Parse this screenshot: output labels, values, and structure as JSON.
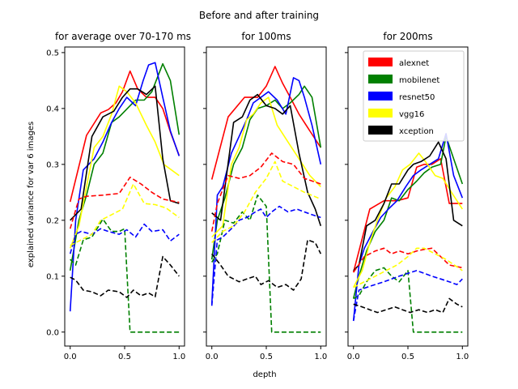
{
  "figure": {
    "suptitle": "Before and after training",
    "ylabel": "explained variance for var 6 images",
    "xlabel": "depth"
  },
  "colors": {
    "alexnet": "#ff0000",
    "mobilenet": "#008000",
    "resnet50": "#0000ff",
    "vgg16": "#ffff00",
    "xception": "#000000"
  },
  "legend": [
    "alexnet",
    "mobilenet",
    "resnet50",
    "vgg16",
    "xception"
  ],
  "chart_data": [
    {
      "type": "line",
      "title": "for average over 70-170 ms",
      "xlim": [
        -0.05,
        1.05
      ],
      "ylim": [
        -0.025,
        0.51
      ],
      "xticks": [
        "0.0",
        "0.5",
        "1.0"
      ],
      "yticks": [
        "0.0",
        "0.1",
        "0.2",
        "0.3",
        "0.4",
        "0.5"
      ],
      "series": [
        {
          "name": "alexnet",
          "style": "solid",
          "x": [
            0,
            0.15,
            0.28,
            0.35,
            0.42,
            0.48,
            0.55,
            0.62,
            0.7,
            0.78,
            0.85,
            0.92,
            1.0
          ],
          "y": [
            0.233,
            0.352,
            0.392,
            0.398,
            0.41,
            0.43,
            0.467,
            0.435,
            0.42,
            0.42,
            0.4,
            0.358,
            0.316
          ]
        },
        {
          "name": "mobilenet",
          "style": "solid",
          "x": [
            0,
            0.08,
            0.15,
            0.22,
            0.3,
            0.38,
            0.45,
            0.5,
            0.6,
            0.68,
            0.75,
            0.85,
            0.92,
            1.0
          ],
          "y": [
            0.11,
            0.2,
            0.245,
            0.3,
            0.32,
            0.375,
            0.385,
            0.395,
            0.415,
            0.415,
            0.43,
            0.48,
            0.45,
            0.353
          ]
        },
        {
          "name": "resnet50",
          "style": "solid",
          "x": [
            0,
            0.05,
            0.12,
            0.22,
            0.3,
            0.38,
            0.45,
            0.52,
            0.6,
            0.67,
            0.72,
            0.78,
            0.85,
            0.92,
            1.0
          ],
          "y": [
            0.037,
            0.2,
            0.29,
            0.31,
            0.34,
            0.375,
            0.4,
            0.42,
            0.405,
            0.45,
            0.478,
            0.482,
            0.42,
            0.36,
            0.315
          ]
        },
        {
          "name": "vgg16",
          "style": "solid",
          "x": [
            0,
            0.08,
            0.15,
            0.22,
            0.3,
            0.38,
            0.45,
            0.52,
            0.6,
            0.7,
            0.78,
            0.86,
            1.0
          ],
          "y": [
            0.15,
            0.19,
            0.26,
            0.33,
            0.35,
            0.39,
            0.44,
            0.43,
            0.41,
            0.37,
            0.34,
            0.3,
            0.28
          ]
        },
        {
          "name": "xception",
          "style": "solid",
          "x": [
            0,
            0.1,
            0.2,
            0.3,
            0.4,
            0.48,
            0.55,
            0.62,
            0.7,
            0.78,
            0.85,
            0.92,
            1.0
          ],
          "y": [
            0.2,
            0.22,
            0.35,
            0.385,
            0.395,
            0.42,
            0.435,
            0.435,
            0.425,
            0.44,
            0.31,
            0.235,
            0.23
          ]
        },
        {
          "name": "alexnet",
          "style": "dashed",
          "x": [
            0,
            0.08,
            0.15,
            0.3,
            0.45,
            0.55,
            0.65,
            0.75,
            0.85,
            1.0
          ],
          "y": [
            0.185,
            0.238,
            0.243,
            0.245,
            0.248,
            0.277,
            0.265,
            0.25,
            0.238,
            0.232
          ]
        },
        {
          "name": "mobilenet",
          "style": "dashed",
          "x": [
            0,
            0.05,
            0.12,
            0.2,
            0.3,
            0.38,
            0.45,
            0.5,
            0.55,
            0.65,
            0.8,
            1.0
          ],
          "y": [
            0.13,
            0.12,
            0.165,
            0.17,
            0.202,
            0.18,
            0.18,
            0.185,
            0.0,
            0.0,
            0.0,
            0.0
          ]
        },
        {
          "name": "resnet50",
          "style": "dashed",
          "x": [
            0,
            0.05,
            0.1,
            0.2,
            0.28,
            0.35,
            0.45,
            0.52,
            0.6,
            0.68,
            0.75,
            0.85,
            0.92,
            1.0
          ],
          "y": [
            0.14,
            0.175,
            0.18,
            0.175,
            0.185,
            0.18,
            0.175,
            0.183,
            0.17,
            0.193,
            0.18,
            0.183,
            0.163,
            0.175
          ]
        },
        {
          "name": "vgg16",
          "style": "dashed",
          "x": [
            0,
            0.1,
            0.2,
            0.28,
            0.38,
            0.48,
            0.58,
            0.68,
            0.78,
            0.88,
            1.0
          ],
          "y": [
            0.155,
            0.165,
            0.175,
            0.2,
            0.21,
            0.22,
            0.265,
            0.23,
            0.228,
            0.222,
            0.205
          ]
        },
        {
          "name": "xception",
          "style": "dashed",
          "x": [
            0,
            0.05,
            0.12,
            0.2,
            0.28,
            0.35,
            0.45,
            0.52,
            0.58,
            0.65,
            0.72,
            0.78,
            0.85,
            0.92,
            1.0
          ],
          "y": [
            0.098,
            0.093,
            0.075,
            0.072,
            0.065,
            0.075,
            0.072,
            0.062,
            0.075,
            0.065,
            0.07,
            0.063,
            0.135,
            0.12,
            0.1
          ]
        }
      ]
    },
    {
      "type": "line",
      "title": "for 100ms",
      "xlim": [
        -0.05,
        1.05
      ],
      "ylim": [
        -0.025,
        0.51
      ],
      "xticks": [
        "0.0",
        "0.5",
        "1.0"
      ],
      "xlabel": "depth",
      "series": [
        {
          "name": "alexnet",
          "style": "solid",
          "x": [
            0,
            0.15,
            0.3,
            0.42,
            0.5,
            0.58,
            0.65,
            0.72,
            0.8,
            0.9,
            1.0
          ],
          "y": [
            0.273,
            0.385,
            0.42,
            0.42,
            0.44,
            0.475,
            0.445,
            0.42,
            0.39,
            0.36,
            0.33
          ]
        },
        {
          "name": "mobilenet",
          "style": "solid",
          "x": [
            0,
            0.05,
            0.12,
            0.2,
            0.28,
            0.35,
            0.42,
            0.5,
            0.58,
            0.65,
            0.72,
            0.8,
            0.85,
            0.92,
            1.0
          ],
          "y": [
            0.13,
            0.2,
            0.24,
            0.3,
            0.33,
            0.38,
            0.4,
            0.405,
            0.415,
            0.4,
            0.41,
            0.425,
            0.44,
            0.42,
            0.33
          ]
        },
        {
          "name": "resnet50",
          "style": "solid",
          "x": [
            0,
            0.05,
            0.1,
            0.18,
            0.25,
            0.32,
            0.38,
            0.45,
            0.52,
            0.6,
            0.68,
            0.75,
            0.8,
            0.85,
            0.92,
            1.0
          ],
          "y": [
            0.05,
            0.245,
            0.26,
            0.32,
            0.35,
            0.38,
            0.41,
            0.42,
            0.43,
            0.415,
            0.39,
            0.455,
            0.45,
            0.42,
            0.37,
            0.3
          ]
        },
        {
          "name": "vgg16",
          "style": "solid",
          "x": [
            0,
            0.1,
            0.18,
            0.25,
            0.32,
            0.38,
            0.45,
            0.52,
            0.6,
            0.7,
            0.8,
            0.9,
            1.0
          ],
          "y": [
            0.17,
            0.19,
            0.3,
            0.33,
            0.38,
            0.39,
            0.41,
            0.42,
            0.37,
            0.34,
            0.31,
            0.28,
            0.26
          ]
        },
        {
          "name": "xception",
          "style": "solid",
          "x": [
            0,
            0.08,
            0.2,
            0.28,
            0.35,
            0.42,
            0.5,
            0.58,
            0.65,
            0.72,
            0.8,
            0.88,
            0.95,
            1.0
          ],
          "y": [
            0.213,
            0.2,
            0.375,
            0.385,
            0.415,
            0.425,
            0.405,
            0.4,
            0.39,
            0.405,
            0.32,
            0.25,
            0.22,
            0.19
          ]
        },
        {
          "name": "alexnet",
          "style": "dashed",
          "x": [
            0,
            0.05,
            0.15,
            0.25,
            0.35,
            0.45,
            0.55,
            0.65,
            0.75,
            0.85,
            1.0
          ],
          "y": [
            0.18,
            0.23,
            0.28,
            0.275,
            0.28,
            0.295,
            0.32,
            0.305,
            0.3,
            0.275,
            0.265
          ]
        },
        {
          "name": "mobilenet",
          "style": "dashed",
          "x": [
            0,
            0.05,
            0.12,
            0.2,
            0.28,
            0.35,
            0.42,
            0.5,
            0.55,
            0.6,
            0.7,
            0.8,
            1.0
          ],
          "y": [
            0.125,
            0.14,
            0.2,
            0.195,
            0.215,
            0.2,
            0.245,
            0.225,
            0.0,
            0.0,
            0.0,
            0.0,
            0.0
          ]
        },
        {
          "name": "resnet50",
          "style": "dashed",
          "x": [
            0,
            0.05,
            0.1,
            0.18,
            0.25,
            0.32,
            0.4,
            0.45,
            0.5,
            0.55,
            0.62,
            0.7,
            0.78,
            0.85,
            0.92,
            1.0
          ],
          "y": [
            0.047,
            0.165,
            0.17,
            0.185,
            0.2,
            0.205,
            0.215,
            0.22,
            0.205,
            0.215,
            0.225,
            0.215,
            0.22,
            0.215,
            0.21,
            0.205
          ]
        },
        {
          "name": "vgg16",
          "style": "dashed",
          "x": [
            0,
            0.1,
            0.2,
            0.3,
            0.4,
            0.5,
            0.58,
            0.65,
            0.75,
            0.85,
            1.0
          ],
          "y": [
            0.16,
            0.18,
            0.19,
            0.215,
            0.25,
            0.275,
            0.305,
            0.27,
            0.26,
            0.25,
            0.238
          ]
        },
        {
          "name": "xception",
          "style": "dashed",
          "x": [
            0,
            0.08,
            0.15,
            0.25,
            0.32,
            0.4,
            0.45,
            0.52,
            0.6,
            0.68,
            0.75,
            0.82,
            0.88,
            0.95,
            1.0
          ],
          "y": [
            0.14,
            0.12,
            0.1,
            0.09,
            0.095,
            0.1,
            0.085,
            0.092,
            0.08,
            0.085,
            0.075,
            0.095,
            0.165,
            0.16,
            0.14
          ]
        }
      ]
    },
    {
      "type": "line",
      "title": "for 200ms",
      "xlim": [
        -0.05,
        1.05
      ],
      "ylim": [
        -0.025,
        0.51
      ],
      "xticks": [
        "0.0",
        "0.5",
        "1.0"
      ],
      "legend_position": "upper-right",
      "series": [
        {
          "name": "alexnet",
          "style": "solid",
          "x": [
            0,
            0.15,
            0.28,
            0.4,
            0.5,
            0.58,
            0.65,
            0.72,
            0.8,
            0.88,
            0.95,
            1.0
          ],
          "y": [
            0.107,
            0.22,
            0.235,
            0.235,
            0.24,
            0.295,
            0.3,
            0.3,
            0.31,
            0.23,
            0.23,
            0.23
          ]
        },
        {
          "name": "mobilenet",
          "style": "solid",
          "x": [
            0,
            0.05,
            0.12,
            0.2,
            0.28,
            0.35,
            0.42,
            0.5,
            0.58,
            0.65,
            0.72,
            0.8,
            0.85,
            0.92,
            1.0
          ],
          "y": [
            0.06,
            0.1,
            0.145,
            0.18,
            0.2,
            0.24,
            0.235,
            0.255,
            0.27,
            0.285,
            0.295,
            0.3,
            0.35,
            0.31,
            0.265
          ]
        },
        {
          "name": "resnet50",
          "style": "solid",
          "x": [
            0,
            0.05,
            0.1,
            0.18,
            0.25,
            0.32,
            0.4,
            0.48,
            0.55,
            0.62,
            0.7,
            0.78,
            0.85,
            0.92,
            1.0
          ],
          "y": [
            0.02,
            0.12,
            0.15,
            0.18,
            0.205,
            0.22,
            0.235,
            0.26,
            0.28,
            0.29,
            0.3,
            0.31,
            0.355,
            0.28,
            0.24
          ]
        },
        {
          "name": "vgg16",
          "style": "solid",
          "x": [
            0,
            0.08,
            0.15,
            0.22,
            0.3,
            0.38,
            0.45,
            0.52,
            0.6,
            0.68,
            0.75,
            0.82,
            0.9,
            1.0
          ],
          "y": [
            0.08,
            0.11,
            0.16,
            0.2,
            0.24,
            0.26,
            0.29,
            0.3,
            0.32,
            0.3,
            0.28,
            0.275,
            0.25,
            0.22
          ]
        },
        {
          "name": "xception",
          "style": "solid",
          "x": [
            0,
            0.05,
            0.12,
            0.2,
            0.28,
            0.35,
            0.42,
            0.5,
            0.55,
            0.62,
            0.7,
            0.78,
            0.85,
            0.92,
            1.0
          ],
          "y": [
            0.11,
            0.12,
            0.19,
            0.2,
            0.23,
            0.265,
            0.265,
            0.29,
            0.3,
            0.305,
            0.315,
            0.34,
            0.31,
            0.2,
            0.19
          ]
        },
        {
          "name": "alexnet",
          "style": "dashed",
          "x": [
            0,
            0.1,
            0.2,
            0.28,
            0.35,
            0.42,
            0.5,
            0.58,
            0.65,
            0.72,
            0.8,
            0.88,
            1.0
          ],
          "y": [
            0.107,
            0.135,
            0.145,
            0.15,
            0.14,
            0.145,
            0.14,
            0.145,
            0.148,
            0.15,
            0.135,
            0.12,
            0.115
          ]
        },
        {
          "name": "mobilenet",
          "style": "dashed",
          "x": [
            0,
            0.05,
            0.12,
            0.2,
            0.28,
            0.35,
            0.42,
            0.5,
            0.55,
            0.6,
            0.7,
            0.8,
            1.0
          ],
          "y": [
            0.06,
            0.065,
            0.09,
            0.11,
            0.115,
            0.1,
            0.09,
            0.11,
            0.0,
            0.0,
            0.0,
            0.0,
            0.0
          ]
        },
        {
          "name": "resnet50",
          "style": "dashed",
          "x": [
            0,
            0.05,
            0.12,
            0.2,
            0.28,
            0.35,
            0.42,
            0.5,
            0.58,
            0.65,
            0.72,
            0.8,
            0.88,
            0.95,
            1.0
          ],
          "y": [
            0.02,
            0.075,
            0.08,
            0.085,
            0.09,
            0.095,
            0.1,
            0.105,
            0.11,
            0.105,
            0.1,
            0.095,
            0.09,
            0.085,
            0.095
          ]
        },
        {
          "name": "vgg16",
          "style": "dashed",
          "x": [
            0,
            0.1,
            0.2,
            0.3,
            0.4,
            0.5,
            0.58,
            0.65,
            0.75,
            0.85,
            1.0
          ],
          "y": [
            0.08,
            0.09,
            0.1,
            0.11,
            0.12,
            0.135,
            0.15,
            0.15,
            0.14,
            0.13,
            0.11
          ]
        },
        {
          "name": "xception",
          "style": "dashed",
          "x": [
            0,
            0.08,
            0.15,
            0.22,
            0.3,
            0.38,
            0.45,
            0.52,
            0.6,
            0.68,
            0.75,
            0.82,
            0.88,
            0.95,
            1.0
          ],
          "y": [
            0.05,
            0.045,
            0.04,
            0.035,
            0.04,
            0.045,
            0.04,
            0.035,
            0.04,
            0.035,
            0.04,
            0.035,
            0.06,
            0.05,
            0.045
          ]
        }
      ]
    }
  ]
}
